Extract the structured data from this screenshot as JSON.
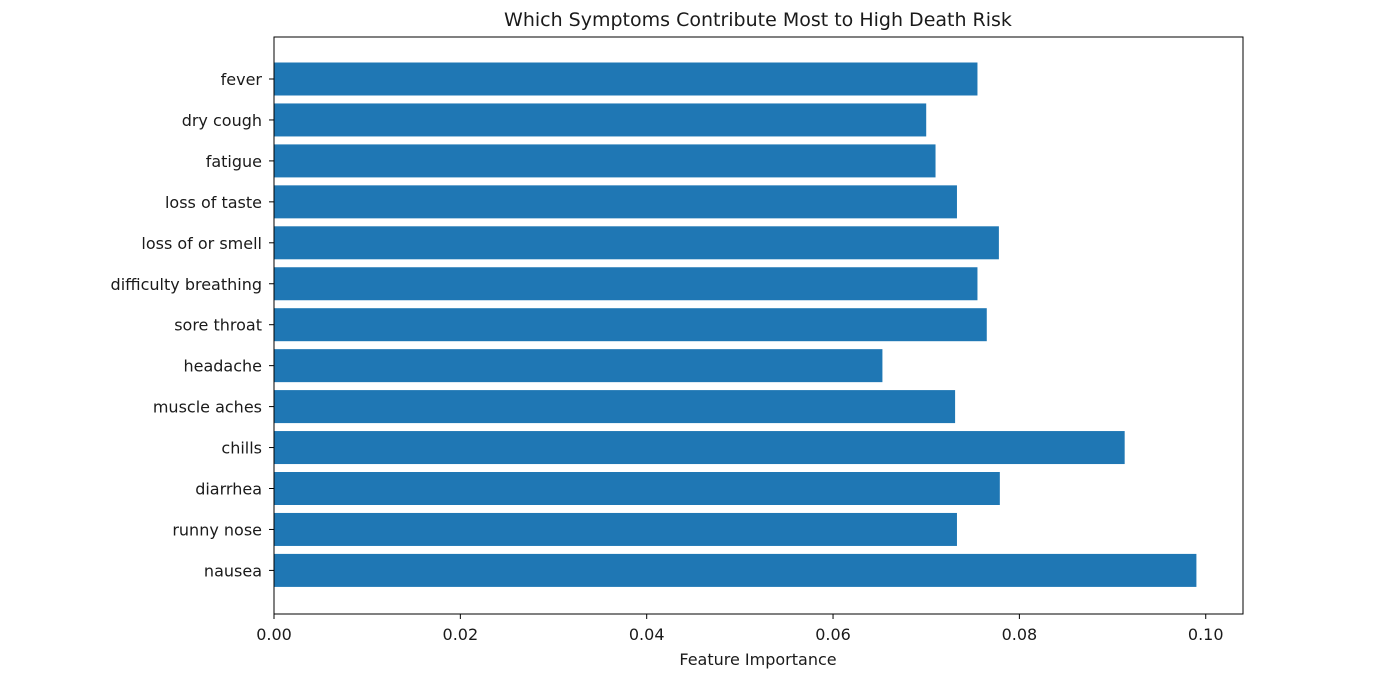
{
  "chart_data": {
    "type": "bar",
    "orientation": "horizontal",
    "title": "Which Symptoms Contribute Most to High Death Risk",
    "xlabel": "Feature Importance",
    "ylabel": "",
    "xlim": [
      0,
      0.104
    ],
    "xticks": [
      0.0,
      0.02,
      0.04,
      0.06,
      0.08,
      0.1
    ],
    "xtick_labels": [
      "0.00",
      "0.02",
      "0.04",
      "0.06",
      "0.08",
      "0.10"
    ],
    "categories": [
      "fever",
      "dry cough",
      "fatigue",
      "loss of taste",
      "loss of or smell",
      "difficulty breathing",
      "sore throat",
      "headache",
      "muscle aches",
      "chills",
      "diarrhea",
      "runny nose",
      "nausea"
    ],
    "values": [
      0.0755,
      0.07,
      0.071,
      0.0733,
      0.0778,
      0.0755,
      0.0765,
      0.0653,
      0.0731,
      0.0913,
      0.0779,
      0.0733,
      0.099
    ],
    "bar_color": "#1f77b4",
    "grid": false,
    "legend": "none"
  }
}
